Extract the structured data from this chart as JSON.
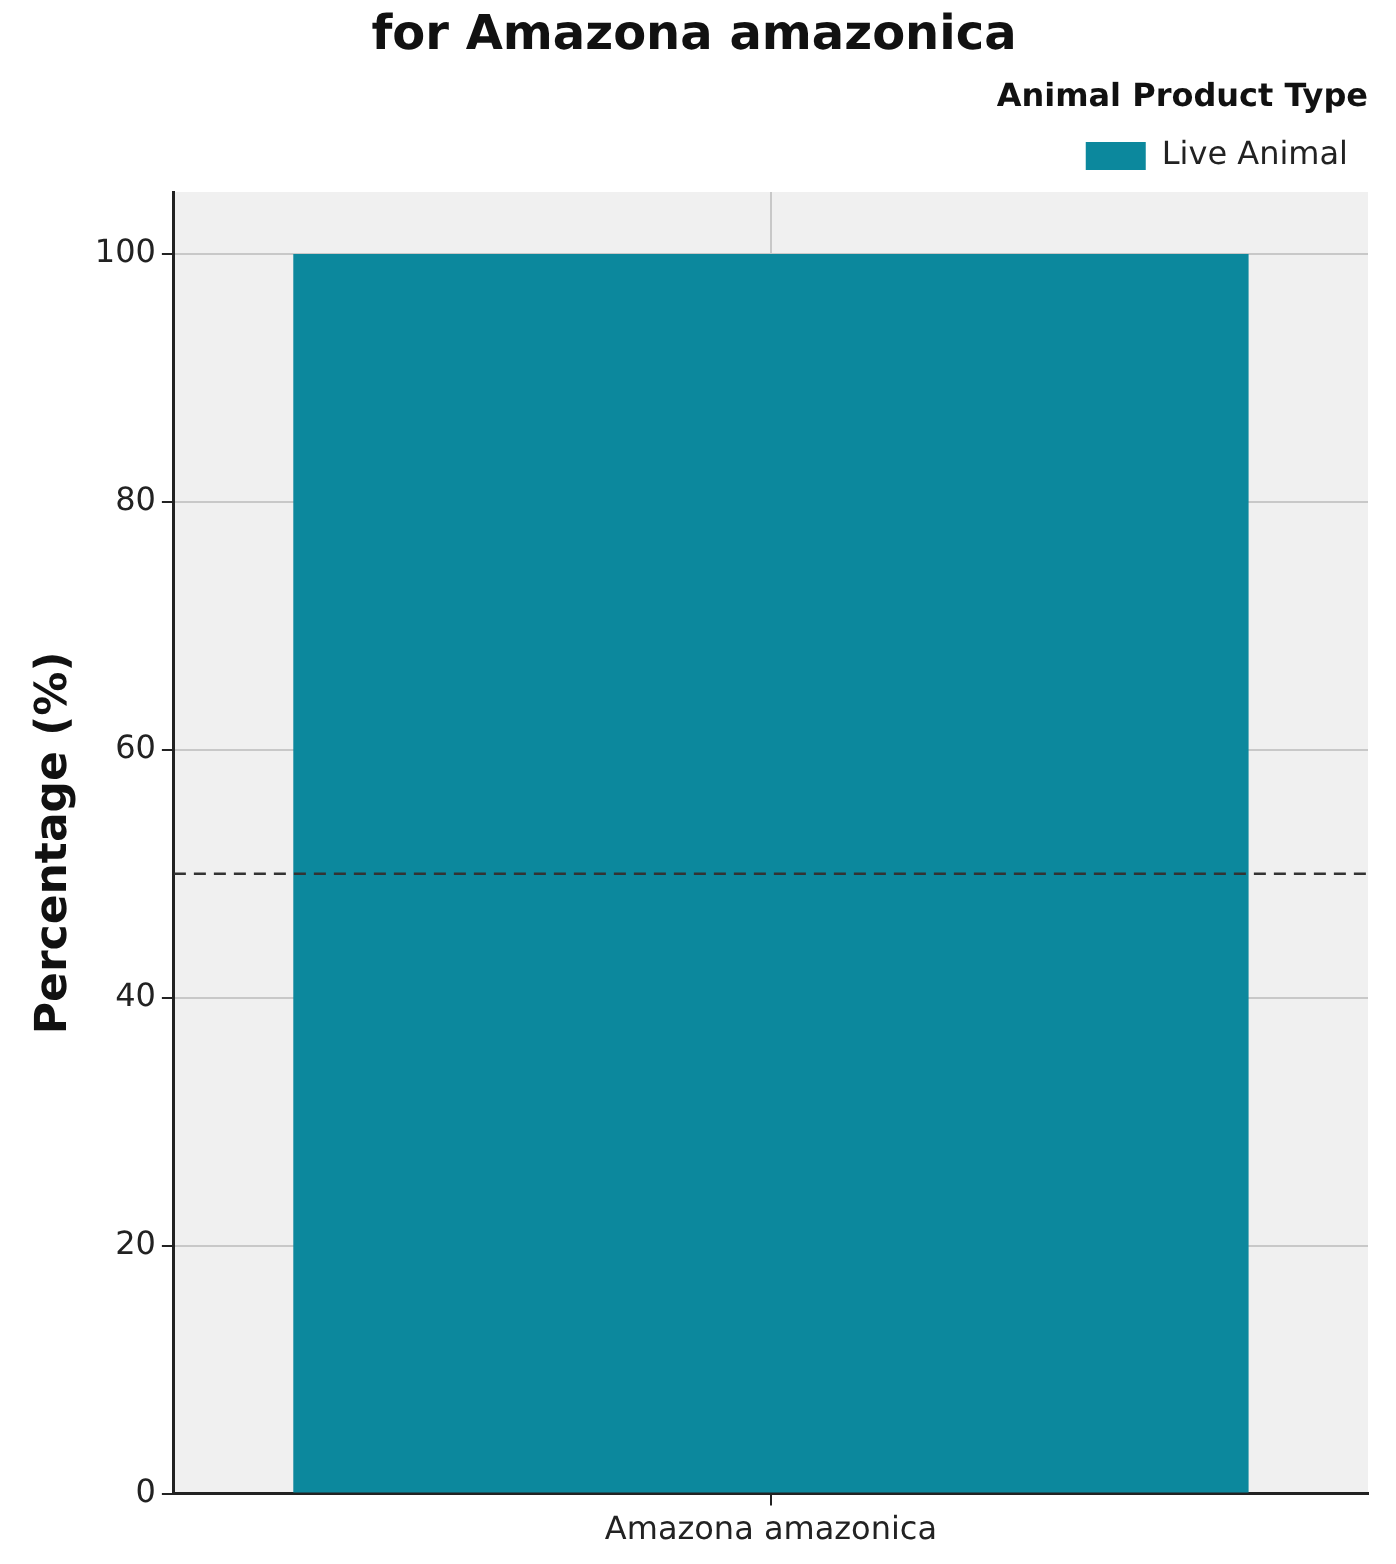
{
  "chart_data": {
    "type": "bar",
    "title": "for Amazona amazonica",
    "ylabel": "Percentage (%)",
    "legend_title": "Animal Product Type",
    "categories": [
      "Amazona amazonica"
    ],
    "series": [
      {
        "name": "Live Animal",
        "color": "#0c889d",
        "values": [
          100
        ]
      }
    ],
    "ylim": [
      0,
      105
    ],
    "yticks": [
      0,
      20,
      40,
      60,
      80,
      100
    ],
    "grid": true,
    "legend": "top right",
    "ref_lines": [
      {
        "axis": "y",
        "value": 50,
        "line_style": "dashed",
        "color": "#333333"
      }
    ]
  }
}
